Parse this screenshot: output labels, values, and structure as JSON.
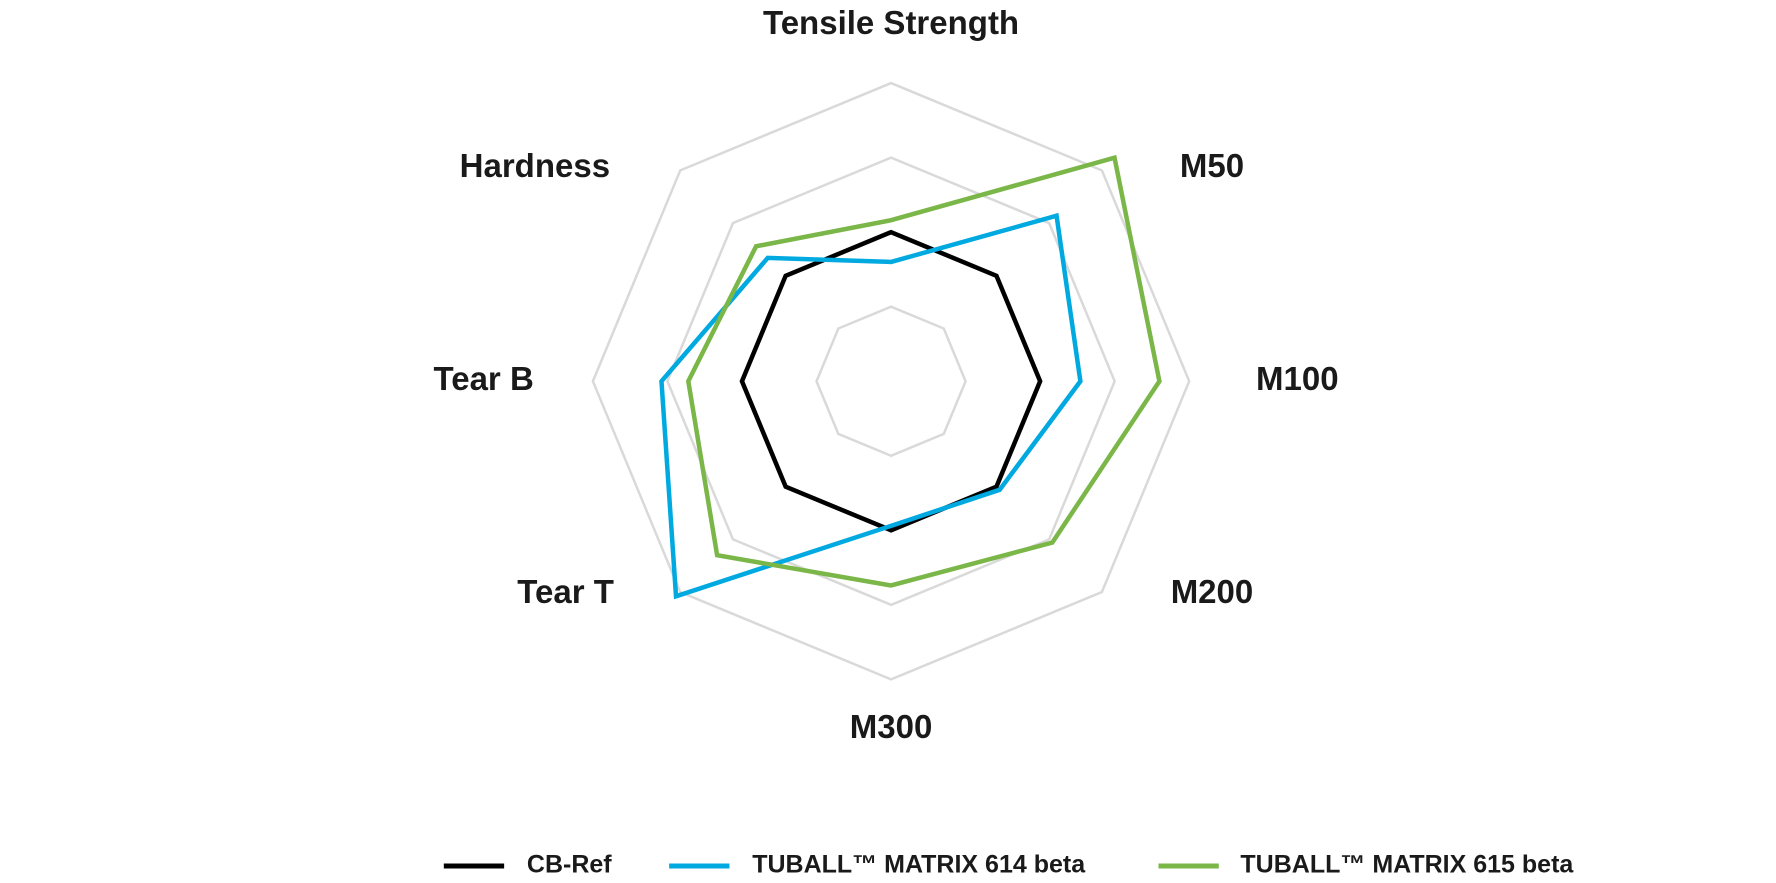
{
  "chart_data": {
    "type": "radar",
    "categories": [
      "Tensile Strength",
      "M50",
      "M100",
      "M200",
      "M300",
      "Tear T",
      "Tear B",
      "Hardness"
    ],
    "series": [
      {
        "name": "CB-Ref",
        "color": "#000000",
        "values": [
          1,
          1,
          1,
          1,
          1,
          1,
          1,
          1
        ]
      },
      {
        "name": "TUBALL™ MATRIX 614 beta",
        "color": "#00a9e0",
        "values": [
          0.8,
          1.57,
          1.27,
          1.03,
          0.97,
          2.04,
          1.54,
          1.17
        ]
      },
      {
        "name": "TUBALL™ MATRIX 615 beta",
        "color": "#7ab648",
        "values": [
          1.08,
          2.12,
          1.8,
          1.53,
          1.37,
          1.65,
          1.36,
          1.28
        ]
      }
    ],
    "ylim": [
      0,
      2
    ],
    "yticks": [
      0.5,
      1,
      1.5,
      2
    ],
    "grid": true,
    "legend": "bottom"
  }
}
